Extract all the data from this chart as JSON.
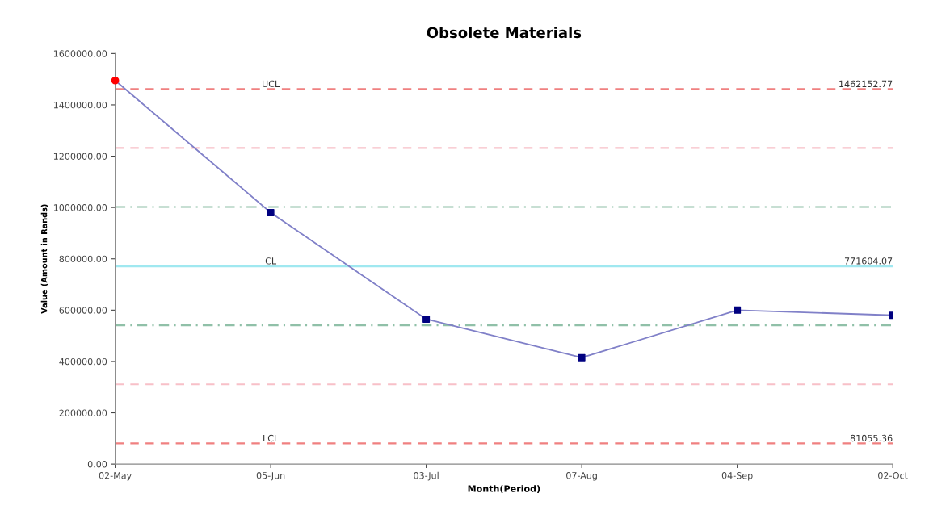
{
  "chart_data": {
    "type": "line",
    "title": "Obsolete Materials",
    "xlabel": "Month(Period)",
    "ylabel": "Value (Amount in Rands)",
    "categories": [
      "02-May",
      "05-Jun",
      "03-Jul",
      "07-Aug",
      "04-Sep",
      "02-Oct"
    ],
    "series": [
      {
        "color": "#8080c8",
        "marker": "square",
        "colors": [
          null,
          "#000080",
          "#000080",
          "#000080",
          "#000080",
          "#000080"
        ],
        "values": [
          1495000,
          980000,
          565000,
          415000,
          600000,
          580000
        ]
      },
      {
        "type": "scatter",
        "color": "#ff0000",
        "marker": "circle",
        "values": [
          1495000,
          null,
          null,
          null,
          null,
          null
        ]
      }
    ],
    "ylim": [
      0,
      1600000
    ],
    "yticks": [
      {
        "value": 0,
        "label": "0.00"
      },
      {
        "value": 200000,
        "label": "200000.00"
      },
      {
        "value": 400000,
        "label": "400000.00"
      },
      {
        "value": 600000,
        "label": "600000.00"
      },
      {
        "value": 800000,
        "label": "800000.00"
      },
      {
        "value": 1000000,
        "label": "1000000.00"
      },
      {
        "value": 1200000,
        "label": "1200000.00"
      },
      {
        "value": 1400000,
        "label": "1400000.00"
      },
      {
        "value": 1600000,
        "label": "1600000.00"
      }
    ],
    "grid": false,
    "legend": false,
    "ref_lines": [
      {
        "axis": "y",
        "value": 1462152.77,
        "label": "UCL",
        "color": "#f08080",
        "line_style": "dashed"
      },
      {
        "axis": "y",
        "value": 1232000,
        "color": "#f8c0c8",
        "line_style": "dashed"
      },
      {
        "axis": "y",
        "value": 1002000,
        "color": "#90c0a8",
        "line_style": "dashdot"
      },
      {
        "axis": "y",
        "value": 771604.07,
        "label": "CL",
        "color": "#a0e8f0",
        "line_style": "solid"
      },
      {
        "axis": "y",
        "value": 541000,
        "color": "#90c0a8",
        "line_style": "dashdot"
      },
      {
        "axis": "y",
        "value": 311000,
        "color": "#f8c0c8",
        "line_style": "dashed"
      },
      {
        "axis": "y",
        "value": 81055.36,
        "label": "LCL",
        "color": "#f08080",
        "line_style": "dashed"
      }
    ],
    "annotations": [
      {
        "text": "1462152.77",
        "x": "02-Oct",
        "y": 1462152.77
      },
      {
        "text": "771604.07",
        "x": "02-Oct",
        "y": 771604.07
      },
      {
        "text": "81055.36",
        "x": "02-Oct",
        "y": 81055.36
      }
    ]
  }
}
